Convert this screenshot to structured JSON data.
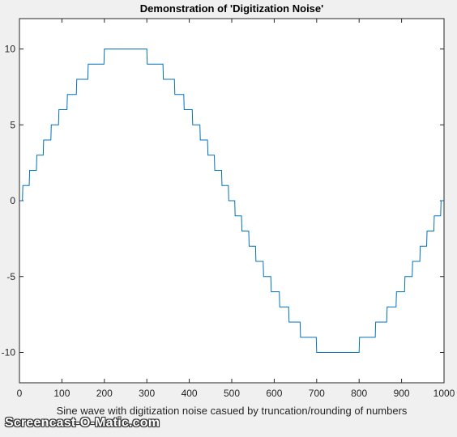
{
  "chart_data": {
    "type": "line",
    "title": "Demonstration of 'Digitization Noise'",
    "xlabel": "Sine wave with digitization noise casued by truncation/rounding of numbers",
    "ylabel": "",
    "xlim": [
      0,
      1000
    ],
    "ylim": [
      -12,
      12
    ],
    "x_ticks": [
      0,
      100,
      200,
      300,
      400,
      500,
      600,
      700,
      800,
      900,
      1000
    ],
    "y_ticks": [
      -10,
      -5,
      0,
      5,
      10
    ],
    "grid": false,
    "legend": "none",
    "series": [
      {
        "color": "#0072bd",
        "style": "step",
        "samples": 1001,
        "amplitude": 10,
        "period": 1000,
        "quantization": "round",
        "description_points_x": [
          0,
          50,
          100,
          150,
          200,
          250,
          300,
          350,
          400,
          450,
          500,
          550,
          600,
          650,
          700,
          750,
          800,
          850,
          900,
          950,
          1000
        ],
        "description_points_y": [
          0,
          3,
          6,
          8,
          10,
          10,
          10,
          8,
          6,
          3,
          0,
          -3,
          -6,
          -8,
          -10,
          -10,
          -10,
          -8,
          -6,
          -3,
          0
        ]
      }
    ]
  },
  "watermark": "Screencast-O-Matic.com"
}
